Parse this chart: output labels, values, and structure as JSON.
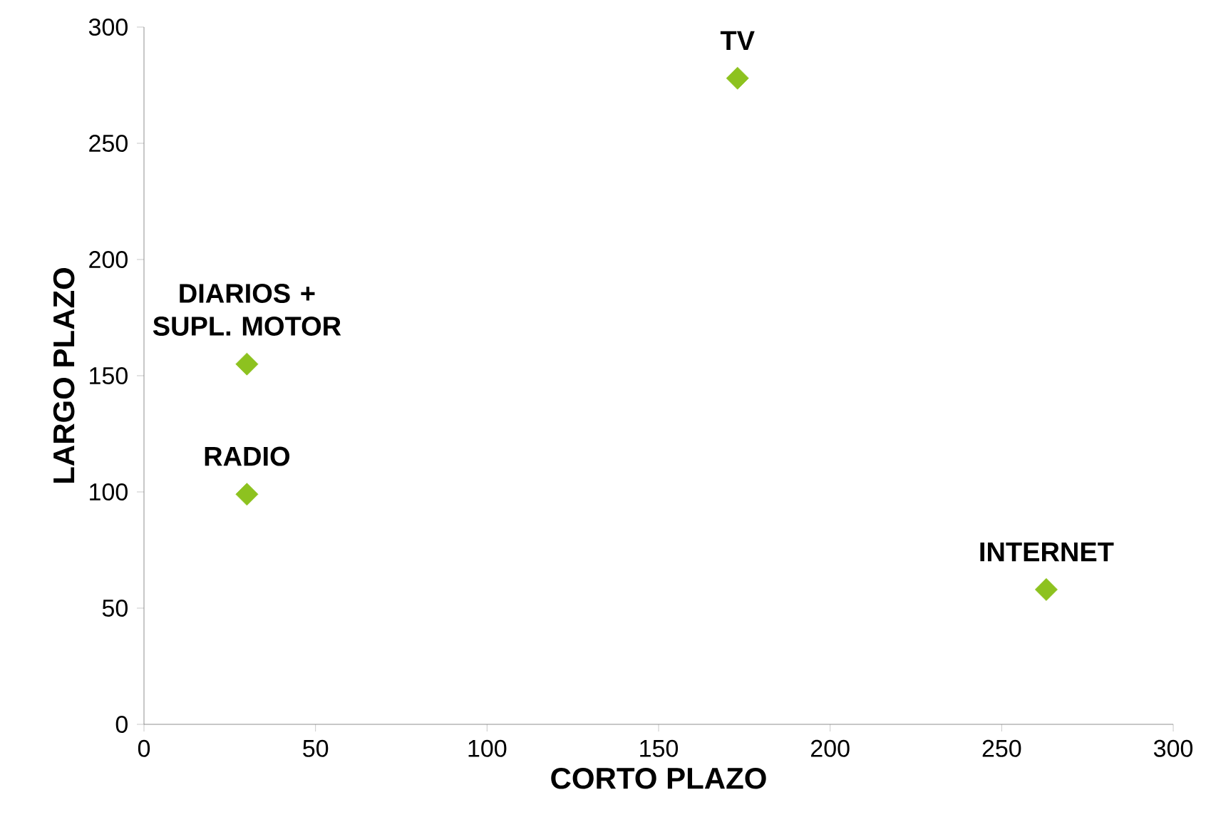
{
  "chart_data": {
    "type": "scatter",
    "xlabel": "CORTO PLAZO",
    "ylabel": "LARGO PLAZO",
    "x": [
      173,
      30,
      30,
      263
    ],
    "series": [
      {
        "color": "#8dc21f",
        "values": [
          278,
          155,
          99,
          58
        ]
      }
    ],
    "annotations": [
      {
        "text": "TV",
        "x": 173,
        "y": 278
      },
      {
        "text": "DIARIOS + SUPL. MOTOR",
        "x": 30,
        "y": 155
      },
      {
        "text": "RADIO",
        "x": 30,
        "y": 99
      },
      {
        "text": "INTERNET",
        "x": 263,
        "y": 58
      }
    ],
    "xlim": [
      0,
      300
    ],
    "ylim": [
      0,
      300
    ],
    "xticks": [
      0,
      50,
      100,
      150,
      200,
      250,
      300
    ],
    "yticks": [
      0,
      50,
      100,
      150,
      200,
      250,
      300
    ],
    "marker": "diamond"
  }
}
